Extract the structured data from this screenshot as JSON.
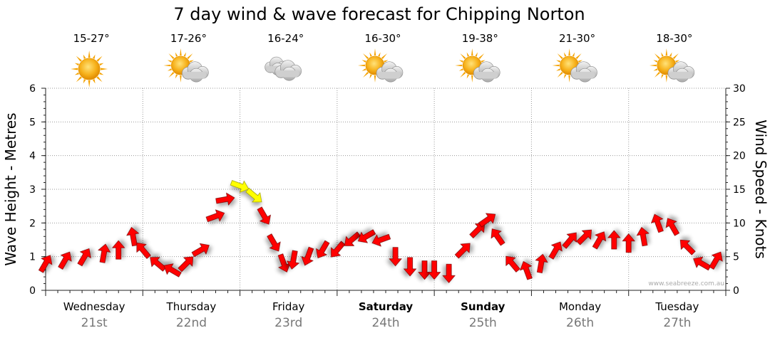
{
  "chart_data": {
    "type": "line",
    "title": "7 day wind & wave forecast for Chipping Norton",
    "ylabel_left": "Wave Height - Metres",
    "ylabel_right": "Wind Speed - Knots",
    "ylim_left": [
      0,
      6
    ],
    "ylim_right": [
      0,
      30
    ],
    "yticks_left": [
      "0",
      "1",
      "2",
      "3",
      "4",
      "5",
      "6"
    ],
    "yticks_right": [
      "0",
      "5",
      "10",
      "15",
      "20",
      "25",
      "30"
    ],
    "grid": true,
    "credit": "www.seabreeze.com.au",
    "days": [
      {
        "name": "Wednesday",
        "date": "21st",
        "bold": false,
        "temp": "15-27°",
        "weather": "sunny"
      },
      {
        "name": "Thursday",
        "date": "22nd",
        "bold": false,
        "temp": "17-26°",
        "weather": "partly-cloudy"
      },
      {
        "name": "Friday",
        "date": "23rd",
        "bold": false,
        "temp": "16-24°",
        "weather": "cloudy"
      },
      {
        "name": "Saturday",
        "date": "24th",
        "bold": true,
        "temp": "16-30°",
        "weather": "partly-cloudy"
      },
      {
        "name": "Sunday",
        "date": "25th",
        "bold": true,
        "temp": "19-38°",
        "weather": "partly-cloudy"
      },
      {
        "name": "Monday",
        "date": "26th",
        "bold": false,
        "temp": "21-30°",
        "weather": "partly-cloudy"
      },
      {
        "name": "Tuesday",
        "date": "27th",
        "bold": false,
        "temp": "18-30°",
        "weather": "partly-cloudy"
      }
    ],
    "wind_series": {
      "name": "Wind Speed",
      "unit": "knots",
      "colors": {
        "normal": "#ff0000",
        "strong": "#ffff00"
      },
      "strong_threshold": 14,
      "x_day": [
        0.0,
        0.2,
        0.4,
        0.6,
        0.75,
        0.9,
        1.0,
        1.15,
        1.3,
        1.45,
        1.6,
        1.75,
        1.85,
        2.0,
        2.15,
        2.25,
        2.35,
        2.45,
        2.55,
        2.7,
        2.85,
        3.0,
        3.15,
        3.3,
        3.45,
        3.6,
        3.75,
        3.9,
        4.0,
        4.15,
        4.3,
        4.45,
        4.55,
        4.65,
        4.8,
        4.95,
        5.1,
        5.25,
        5.4,
        5.55,
        5.7,
        5.85,
        6.0,
        6.15,
        6.3,
        6.45,
        6.6,
        6.75,
        6.9
      ],
      "speed": [
        4,
        4.5,
        5,
        5.5,
        6,
        8,
        6,
        4,
        3,
        4,
        6,
        11,
        13.5,
        15.5,
        14,
        11,
        7,
        4,
        4.5,
        5,
        6,
        6,
        7.5,
        8,
        7.5,
        5,
        3.5,
        3,
        3,
        2.5,
        6,
        9,
        10.5,
        8,
        4,
        3,
        4,
        6,
        7.5,
        8,
        7.5,
        7.5,
        7,
        8,
        10,
        9.5,
        6.5,
        4,
        4.5
      ],
      "direction_deg": [
        60,
        60,
        60,
        80,
        90,
        100,
        130,
        140,
        150,
        45,
        30,
        20,
        10,
        340,
        320,
        300,
        300,
        290,
        260,
        250,
        240,
        230,
        220,
        210,
        200,
        270,
        270,
        270,
        270,
        270,
        45,
        45,
        35,
        125,
        130,
        110,
        80,
        60,
        50,
        45,
        60,
        90,
        90,
        100,
        110,
        120,
        135,
        150,
        60
      ]
    }
  }
}
